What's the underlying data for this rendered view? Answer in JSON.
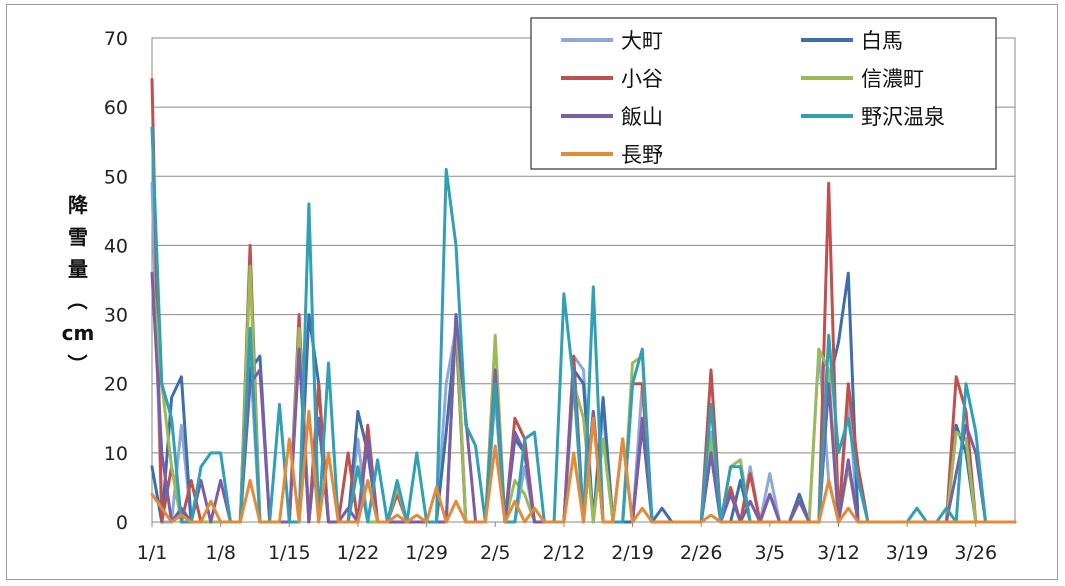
{
  "chart_data": {
    "type": "line",
    "title": "",
    "xlabel": "",
    "ylabel": "降雪量（cm）",
    "ylabel_chars": [
      "降",
      "雪",
      "量",
      "（",
      "cm",
      "）"
    ],
    "ylim": [
      0,
      70
    ],
    "yticks": [
      0,
      10,
      20,
      30,
      40,
      50,
      60,
      70
    ],
    "xlim": [
      0,
      88
    ],
    "xticks": [
      {
        "day": 0,
        "label": "1/1"
      },
      {
        "day": 7,
        "label": "1/8"
      },
      {
        "day": 14,
        "label": "1/15"
      },
      {
        "day": 21,
        "label": "1/22"
      },
      {
        "day": 28,
        "label": "1/29"
      },
      {
        "day": 35,
        "label": "2/5"
      },
      {
        "day": 42,
        "label": "2/12"
      },
      {
        "day": 49,
        "label": "2/19"
      },
      {
        "day": 56,
        "label": "2/26"
      },
      {
        "day": 63,
        "label": "3/5"
      },
      {
        "day": 70,
        "label": "3/12"
      },
      {
        "day": 77,
        "label": "3/19"
      },
      {
        "day": 84,
        "label": "3/26"
      }
    ],
    "grid": "horizontal",
    "legend": {
      "position": "top-right",
      "columns": 2
    },
    "series": [
      {
        "name": "大町",
        "color": "#8EA9D8",
        "peaks": [
          [
            0,
            49
          ],
          [
            3,
            14
          ],
          [
            10,
            24
          ],
          [
            15,
            25
          ],
          [
            17,
            15
          ],
          [
            21,
            12
          ],
          [
            30,
            20
          ],
          [
            31,
            28
          ],
          [
            35,
            18
          ],
          [
            38,
            8
          ],
          [
            43,
            24
          ],
          [
            44,
            22
          ],
          [
            46,
            16
          ],
          [
            50,
            20
          ],
          [
            57,
            13
          ],
          [
            61,
            8
          ],
          [
            63,
            7
          ],
          [
            66,
            4
          ],
          [
            68,
            25
          ],
          [
            69,
            6
          ],
          [
            71,
            18
          ],
          [
            82,
            13
          ],
          [
            83,
            12
          ]
        ]
      },
      {
        "name": "白馬",
        "color": "#3F6EAA",
        "peaks": [
          [
            0,
            8
          ],
          [
            2,
            18
          ],
          [
            3,
            21
          ],
          [
            10,
            22
          ],
          [
            11,
            24
          ],
          [
            16,
            30
          ],
          [
            17,
            20
          ],
          [
            21,
            16
          ],
          [
            22,
            10
          ],
          [
            30,
            13
          ],
          [
            31,
            28
          ],
          [
            35,
            20
          ],
          [
            37,
            12
          ],
          [
            38,
            10
          ],
          [
            43,
            22
          ],
          [
            44,
            20
          ],
          [
            46,
            18
          ],
          [
            50,
            14
          ],
          [
            52,
            2
          ],
          [
            57,
            10
          ],
          [
            60,
            6
          ],
          [
            63,
            4
          ],
          [
            66,
            4
          ],
          [
            69,
            20
          ],
          [
            70,
            26
          ],
          [
            71,
            36
          ],
          [
            82,
            14
          ],
          [
            83,
            10
          ]
        ]
      },
      {
        "name": "小谷",
        "color": "#C0504D",
        "peaks": [
          [
            0,
            64
          ],
          [
            2,
            8
          ],
          [
            4,
            6
          ],
          [
            10,
            40
          ],
          [
            15,
            30
          ],
          [
            17,
            20
          ],
          [
            20,
            10
          ],
          [
            22,
            14
          ],
          [
            25,
            4
          ],
          [
            31,
            30
          ],
          [
            35,
            22
          ],
          [
            37,
            15
          ],
          [
            38,
            12
          ],
          [
            43,
            24
          ],
          [
            45,
            16
          ],
          [
            49,
            20
          ],
          [
            50,
            20
          ],
          [
            57,
            22
          ],
          [
            59,
            5
          ],
          [
            61,
            7
          ],
          [
            69,
            49
          ],
          [
            71,
            20
          ],
          [
            72,
            8
          ],
          [
            82,
            21
          ],
          [
            83,
            16
          ]
        ]
      },
      {
        "name": "信濃町",
        "color": "#9BBB59",
        "peaks": [
          [
            0,
            36
          ],
          [
            1,
            20
          ],
          [
            2,
            8
          ],
          [
            10,
            37
          ],
          [
            15,
            28
          ],
          [
            17,
            15
          ],
          [
            21,
            8
          ],
          [
            25,
            5
          ],
          [
            31,
            30
          ],
          [
            35,
            27
          ],
          [
            37,
            6
          ],
          [
            38,
            4
          ],
          [
            43,
            20
          ],
          [
            44,
            15
          ],
          [
            46,
            12
          ],
          [
            49,
            23
          ],
          [
            50,
            24
          ],
          [
            57,
            12
          ],
          [
            59,
            8
          ],
          [
            60,
            9
          ],
          [
            68,
            25
          ],
          [
            69,
            22
          ],
          [
            71,
            8
          ],
          [
            82,
            13
          ],
          [
            83,
            12
          ]
        ]
      },
      {
        "name": "飯山",
        "color": "#7B5EA7",
        "peaks": [
          [
            0,
            36
          ],
          [
            1,
            10
          ],
          [
            3,
            2
          ],
          [
            5,
            6
          ],
          [
            7,
            6
          ],
          [
            10,
            20
          ],
          [
            11,
            22
          ],
          [
            15,
            25
          ],
          [
            17,
            15
          ],
          [
            20,
            2
          ],
          [
            22,
            12
          ],
          [
            31,
            30
          ],
          [
            32,
            15
          ],
          [
            35,
            22
          ],
          [
            37,
            13
          ],
          [
            38,
            10
          ],
          [
            43,
            22
          ],
          [
            45,
            16
          ],
          [
            48,
            12
          ],
          [
            50,
            15
          ],
          [
            57,
            10
          ],
          [
            59,
            4
          ],
          [
            61,
            3
          ],
          [
            63,
            4
          ],
          [
            66,
            3
          ],
          [
            69,
            20
          ],
          [
            71,
            9
          ],
          [
            82,
            7
          ],
          [
            83,
            14
          ],
          [
            84,
            10
          ]
        ]
      },
      {
        "name": "野沢温泉",
        "color": "#31A0B5",
        "peaks": [
          [
            0,
            57
          ],
          [
            1,
            20
          ],
          [
            2,
            15
          ],
          [
            5,
            8
          ],
          [
            6,
            10
          ],
          [
            7,
            10
          ],
          [
            10,
            28
          ],
          [
            13,
            17
          ],
          [
            16,
            46
          ],
          [
            18,
            23
          ],
          [
            21,
            8
          ],
          [
            23,
            9
          ],
          [
            25,
            6
          ],
          [
            27,
            10
          ],
          [
            30,
            51
          ],
          [
            31,
            40
          ],
          [
            32,
            14
          ],
          [
            33,
            11
          ],
          [
            35,
            20
          ],
          [
            38,
            12
          ],
          [
            39,
            13
          ],
          [
            42,
            33
          ],
          [
            43,
            20
          ],
          [
            45,
            34
          ],
          [
            49,
            20
          ],
          [
            50,
            25
          ],
          [
            57,
            17
          ],
          [
            59,
            8
          ],
          [
            60,
            8
          ],
          [
            69,
            27
          ],
          [
            70,
            10
          ],
          [
            71,
            15
          ],
          [
            72,
            6
          ],
          [
            78,
            2
          ],
          [
            81,
            2
          ],
          [
            83,
            20
          ],
          [
            84,
            13
          ]
        ]
      },
      {
        "name": "長野",
        "color": "#E38B3A",
        "peaks": [
          [
            0,
            4
          ],
          [
            1,
            2
          ],
          [
            3,
            1
          ],
          [
            6,
            3
          ],
          [
            10,
            6
          ],
          [
            14,
            12
          ],
          [
            16,
            16
          ],
          [
            18,
            10
          ],
          [
            22,
            6
          ],
          [
            25,
            1
          ],
          [
            27,
            1
          ],
          [
            29,
            5
          ],
          [
            31,
            3
          ],
          [
            35,
            11
          ],
          [
            37,
            3
          ],
          [
            39,
            2
          ],
          [
            43,
            10
          ],
          [
            45,
            15
          ],
          [
            48,
            12
          ],
          [
            50,
            2
          ],
          [
            57,
            1
          ],
          [
            69,
            6
          ],
          [
            71,
            2
          ]
        ]
      }
    ]
  }
}
